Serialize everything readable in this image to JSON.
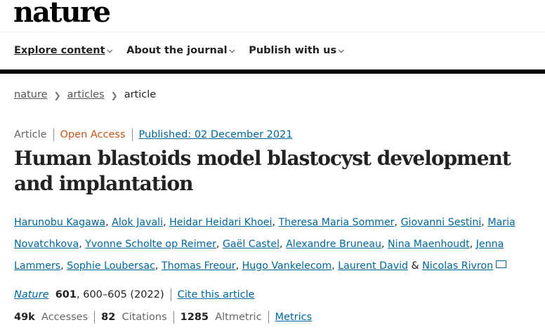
{
  "logo": "nature",
  "nav": [
    {
      "label": "Explore content"
    },
    {
      "label": "About the journal"
    },
    {
      "label": "Publish with us"
    }
  ],
  "breadcrumb": [
    {
      "label": "nature"
    },
    {
      "label": "articles"
    },
    {
      "label": "article"
    }
  ],
  "meta": {
    "type": "Article",
    "access": "Open Access",
    "published": "Published: 02 December 2021"
  },
  "title": "Human blastoids model blastocyst development and implantation",
  "authors": [
    "Harunobu Kagawa",
    "Alok Javali",
    "Heidar Heidari Khoei",
    "Theresa Maria Sommer",
    "Giovanni Sestini",
    "Maria Novatchkova",
    "Yvonne Scholte op Reimer",
    "Gaël Castel",
    "Alexandre Bruneau",
    "Nina Maenhoudt",
    "Jenna Lammers",
    "Sophie Loubersac",
    "Thomas Freour",
    "Hugo Vankelecom",
    "Laurent David",
    "Nicolas Rivron"
  ],
  "authors_amp": "&",
  "citation": {
    "journal": "Nature",
    "volume": "601",
    "pages": ", 600–605 (2022)",
    "cite_label": "Cite this article"
  },
  "stats": {
    "accesses_value": "49k",
    "accesses_label": "Accesses",
    "citations_value": "82",
    "citations_label": "Citations",
    "altmetric_value": "1285",
    "altmetric_label": "Altmetric",
    "metrics_label": "Metrics"
  },
  "colors": {
    "link": "#006699",
    "open_access": "#c4531a"
  }
}
